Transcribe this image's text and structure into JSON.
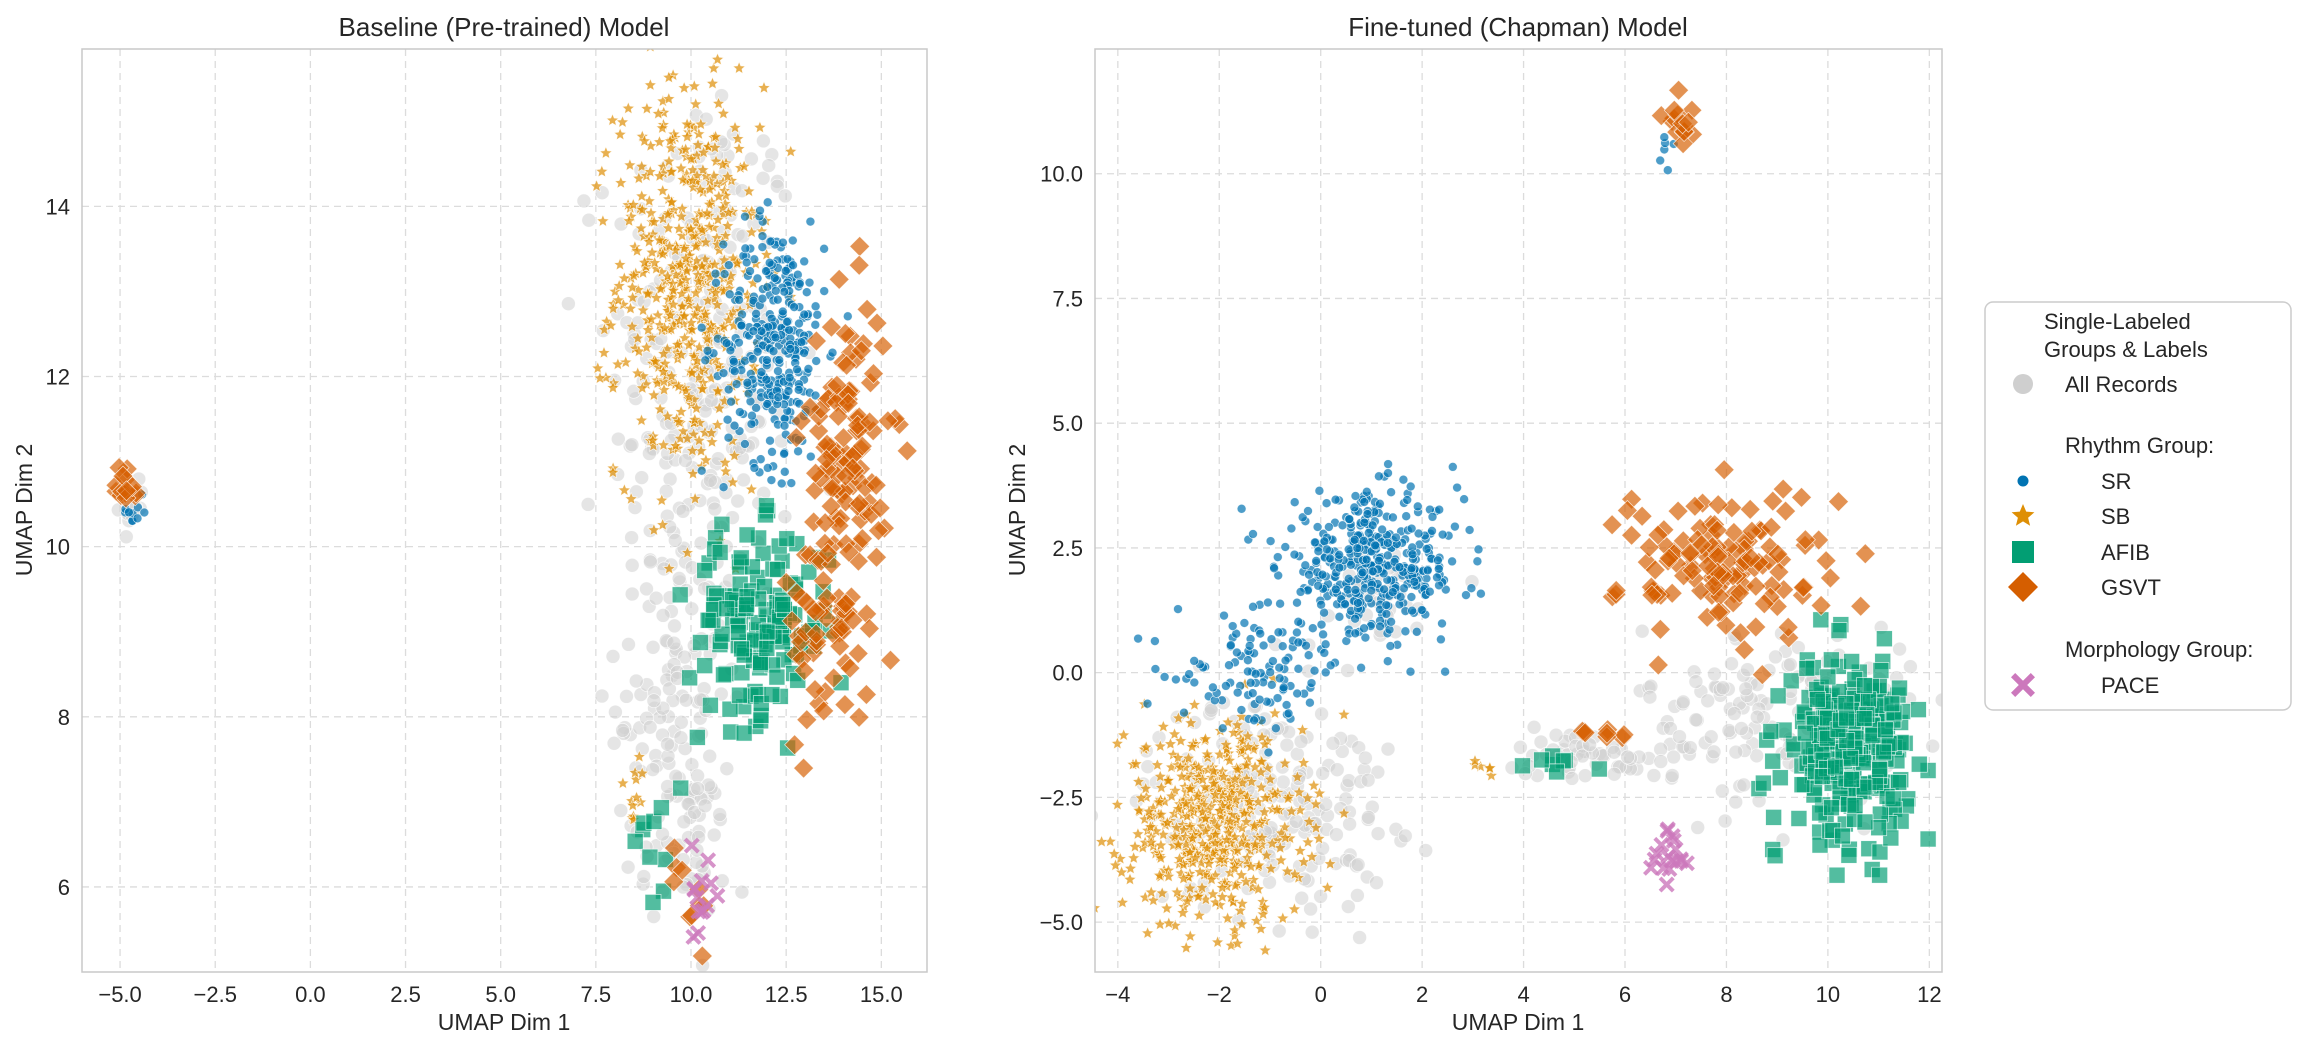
{
  "colors": {
    "all_records": "#cfcfcf",
    "SR": "#0173b2",
    "SB": "#de8f05",
    "AFIB": "#029e73",
    "GSVT": "#d55e00",
    "PACE": "#cc78bc",
    "grid": "#dcdcdc",
    "frame": "#c8c8c8"
  },
  "legend": {
    "title_line1": "Single-Labeled",
    "title_line2": "Groups & Labels",
    "all_records": "All Records",
    "rhythm_header": "Rhythm Group:",
    "morph_header": "Morphology Group:",
    "items": [
      {
        "label": "SR",
        "marker": "circle",
        "color": "#0173b2"
      },
      {
        "label": "SB",
        "marker": "star",
        "color": "#de8f05"
      },
      {
        "label": "AFIB",
        "marker": "square",
        "color": "#029e73"
      },
      {
        "label": "GSVT",
        "marker": "diamond",
        "color": "#d55e00"
      },
      {
        "label": "PACE",
        "marker": "x",
        "color": "#cc78bc"
      }
    ]
  },
  "chart_data": [
    {
      "type": "scatter",
      "title": "Baseline (Pre-trained) Model",
      "xlabel": "UMAP Dim 1",
      "ylabel": "UMAP Dim 2",
      "xlim": [
        -6.0,
        16.2
      ],
      "ylim": [
        5.0,
        15.85
      ],
      "xticks": [
        -5.0,
        -2.5,
        0.0,
        2.5,
        5.0,
        7.5,
        10.0,
        12.5,
        15.0
      ],
      "xtick_labels": [
        "−5.0",
        "−2.5",
        "0.0",
        "2.5",
        "5.0",
        "7.5",
        "10.0",
        "12.5",
        "15.0"
      ],
      "yticks": [
        6,
        8,
        10,
        12,
        14
      ],
      "ytick_labels": [
        "6",
        "8",
        "10",
        "12",
        "14"
      ],
      "grid": true,
      "clusters": [
        {
          "series": "All Records",
          "cx": 10.3,
          "cy": 12.0,
          "rx": 2.2,
          "ry": 3.3,
          "n": 260
        },
        {
          "series": "All Records",
          "cx": 9.6,
          "cy": 8.2,
          "rx": 1.4,
          "ry": 2.0,
          "n": 110
        },
        {
          "series": "All Records",
          "cx": 9.8,
          "cy": 6.5,
          "rx": 1.0,
          "ry": 0.9,
          "n": 40
        },
        {
          "series": "All Records",
          "cx": -4.7,
          "cy": 10.5,
          "rx": 0.3,
          "ry": 0.3,
          "n": 12
        },
        {
          "series": "SB",
          "cx": 9.9,
          "cy": 13.1,
          "rx": 1.7,
          "ry": 2.1,
          "n": 520
        },
        {
          "series": "SB",
          "cx": 8.5,
          "cy": 7.2,
          "rx": 0.3,
          "ry": 0.6,
          "n": 12
        },
        {
          "series": "SR",
          "cx": 12.2,
          "cy": 12.4,
          "rx": 1.2,
          "ry": 1.3,
          "n": 330
        },
        {
          "series": "SR",
          "cx": -4.6,
          "cy": 10.4,
          "rx": 0.3,
          "ry": 0.15,
          "n": 10
        },
        {
          "series": "GSVT",
          "cx": 14.1,
          "cy": 11.2,
          "rx": 1.0,
          "ry": 1.6,
          "n": 110
        },
        {
          "series": "GSVT",
          "cx": 13.6,
          "cy": 9.0,
          "rx": 1.0,
          "ry": 1.1,
          "n": 60
        },
        {
          "series": "GSVT",
          "cx": -4.8,
          "cy": 10.7,
          "rx": 0.3,
          "ry": 0.3,
          "n": 14
        },
        {
          "series": "GSVT",
          "cx": 10.1,
          "cy": 6.0,
          "rx": 0.6,
          "ry": 0.6,
          "n": 10
        },
        {
          "series": "AFIB",
          "cx": 11.8,
          "cy": 9.1,
          "rx": 1.7,
          "ry": 1.0,
          "n": 150
        },
        {
          "series": "AFIB",
          "cx": 9.2,
          "cy": 6.6,
          "rx": 0.6,
          "ry": 0.8,
          "n": 10
        },
        {
          "series": "PACE",
          "cx": 10.2,
          "cy": 5.9,
          "rx": 0.35,
          "ry": 0.45,
          "n": 14
        }
      ]
    },
    {
      "type": "scatter",
      "title": "Fine-tuned (Chapman) Model",
      "xlabel": "UMAP Dim 1",
      "ylabel": "UMAP Dim 2",
      "xlim": [
        -4.45,
        12.25
      ],
      "ylim": [
        -6.0,
        12.5
      ],
      "xticks": [
        -4,
        -2,
        0,
        2,
        4,
        6,
        8,
        10,
        12
      ],
      "xtick_labels": [
        "−4",
        "−2",
        "0",
        "2",
        "4",
        "6",
        "8",
        "10",
        "12"
      ],
      "yticks": [
        -5.0,
        -2.5,
        0.0,
        2.5,
        5.0,
        7.5,
        10.0
      ],
      "ytick_labels": [
        "−5.0",
        "−2.5",
        "0.0",
        "2.5",
        "5.0",
        "7.5",
        "10.0"
      ],
      "grid": true,
      "clusters": [
        {
          "series": "All Records",
          "cx": -1.0,
          "cy": -2.6,
          "rx": 2.2,
          "ry": 2.0,
          "n": 200
        },
        {
          "series": "All Records",
          "cx": 9.0,
          "cy": -0.8,
          "rx": 2.4,
          "ry": 1.6,
          "n": 150
        },
        {
          "series": "All Records",
          "cx": 5.2,
          "cy": -1.6,
          "rx": 1.4,
          "ry": 0.5,
          "n": 50
        },
        {
          "series": "All Records",
          "cx": 1.0,
          "cy": 1.5,
          "rx": 1.3,
          "ry": 1.0,
          "n": 40
        },
        {
          "series": "SB",
          "cx": -2.1,
          "cy": -3.0,
          "rx": 1.6,
          "ry": 1.8,
          "n": 520
        },
        {
          "series": "SB",
          "cx": 3.2,
          "cy": -1.9,
          "rx": 0.4,
          "ry": 0.15,
          "n": 6
        },
        {
          "series": "SR",
          "cx": 1.0,
          "cy": 2.1,
          "rx": 1.6,
          "ry": 1.3,
          "n": 420
        },
        {
          "series": "SR",
          "cx": -1.2,
          "cy": 0.0,
          "rx": 1.5,
          "ry": 1.0,
          "n": 110
        },
        {
          "series": "SR",
          "cx": 6.8,
          "cy": 10.5,
          "rx": 0.2,
          "ry": 0.3,
          "n": 6
        },
        {
          "series": "GSVT",
          "cx": 8.0,
          "cy": 2.2,
          "rx": 1.9,
          "ry": 1.4,
          "n": 130
        },
        {
          "series": "GSVT",
          "cx": 7.05,
          "cy": 11.1,
          "rx": 0.25,
          "ry": 0.5,
          "n": 14
        },
        {
          "series": "GSVT",
          "cx": 5.6,
          "cy": -1.3,
          "rx": 0.8,
          "ry": 0.3,
          "n": 8
        },
        {
          "series": "AFIB",
          "cx": 10.4,
          "cy": -1.5,
          "rx": 1.1,
          "ry": 1.6,
          "n": 260
        },
        {
          "series": "AFIB",
          "cx": 4.7,
          "cy": -1.8,
          "rx": 0.7,
          "ry": 0.2,
          "n": 8
        },
        {
          "series": "PACE",
          "cx": 6.9,
          "cy": -3.7,
          "rx": 0.35,
          "ry": 0.55,
          "n": 18
        }
      ]
    }
  ]
}
